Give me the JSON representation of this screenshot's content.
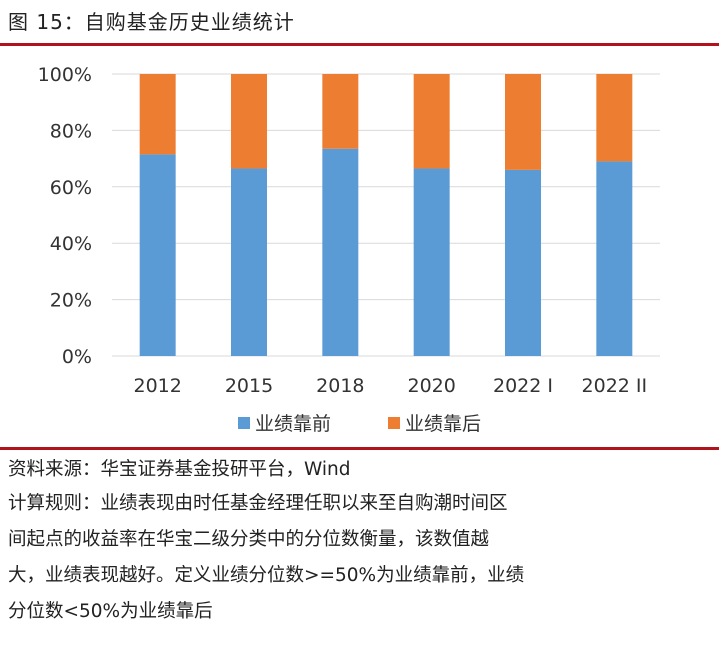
{
  "figure": {
    "title": "图 15：自购基金历史业绩统计"
  },
  "chart_data": {
    "type": "bar",
    "stacked": true,
    "categories": [
      "2012",
      "2015",
      "2018",
      "2020",
      "2022 I",
      "2022 II"
    ],
    "series": [
      {
        "name": "业绩靠前",
        "color": "#5b9bd5",
        "values": [
          71.5,
          66.5,
          73.5,
          66.5,
          66,
          69
        ]
      },
      {
        "name": "业绩靠后",
        "color": "#ed7d31",
        "values": [
          28.5,
          33.5,
          26.5,
          33.5,
          34,
          31
        ]
      }
    ],
    "yticks": [
      "0%",
      "20%",
      "40%",
      "60%",
      "80%",
      "100%"
    ],
    "ylim": [
      0,
      100
    ],
    "grid": true,
    "legend": "bottom",
    "xlabel": "",
    "ylabel": ""
  },
  "notes": {
    "source": "资料来源：华宝证券基金投研平台，Wind",
    "rule_lines": [
      "计算规则：业绩表现由时任基金经理任职以来至自购潮时间区",
      "间起点的收益率在华宝二级分类中的分位数衡量，该数值越",
      "大，业绩表现越好。定义业绩分位数>=50%为业绩靠前，业绩",
      "分位数<50%为业绩靠后"
    ]
  },
  "colors": {
    "accent_rule": "#b2121b",
    "grid": "#d9d9d9"
  }
}
